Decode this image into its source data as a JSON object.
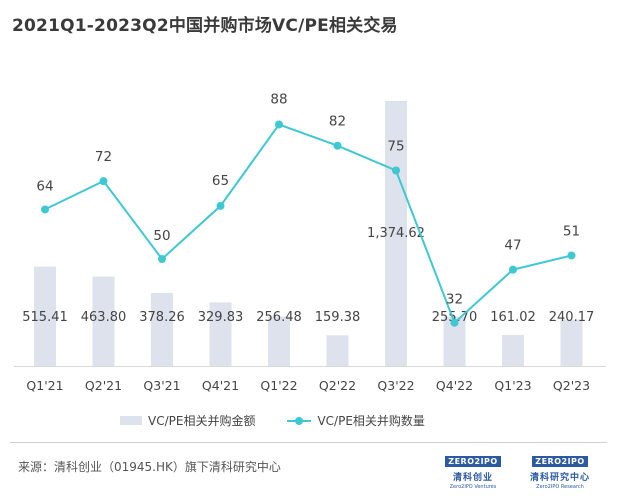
{
  "title": "2021Q1-2023Q2中国并购市场VC/PE相关交易",
  "colors": {
    "bar": "#dde2ec",
    "line": "#3ec8d2",
    "text": "#3a3a3a"
  },
  "chart_data": {
    "type": "bar+line",
    "categories": [
      "Q1'21",
      "Q2'21",
      "Q3'21",
      "Q4'21",
      "Q1'22",
      "Q2'22",
      "Q3'22",
      "Q4'22",
      "Q1'23",
      "Q2'23"
    ],
    "series": [
      {
        "name": "VC/PE相关并购金额",
        "type": "bar",
        "values": [
          515.41,
          463.8,
          378.26,
          329.83,
          256.48,
          159.38,
          1374.62,
          255.7,
          161.02,
          240.17
        ],
        "labels": [
          "515.41",
          "463.80",
          "378.26",
          "329.83",
          "256.48",
          "159.38",
          "1,374.62",
          "255.70",
          "161.02",
          "240.17"
        ]
      },
      {
        "name": "VC/PE相关并购数量",
        "type": "line",
        "values": [
          64,
          72,
          50,
          65,
          88,
          82,
          75,
          32,
          47,
          51
        ]
      }
    ],
    "bar_ylim": [
      0,
      1400
    ],
    "line_ylim": [
      0,
      100
    ]
  },
  "legend": {
    "bar_label": "VC/PE相关并购金额",
    "line_label": "VC/PE相关并购数量"
  },
  "source": "来源：清科创业（01945.HK）旗下清科研究中心",
  "logos": [
    {
      "mark": "ZERO2IPO",
      "cn": "清科创业",
      "en": "Zero2IPO Ventures"
    },
    {
      "mark": "ZERO2IPO",
      "cn": "清科研究中心",
      "en": "Zero2IPO Research"
    }
  ]
}
